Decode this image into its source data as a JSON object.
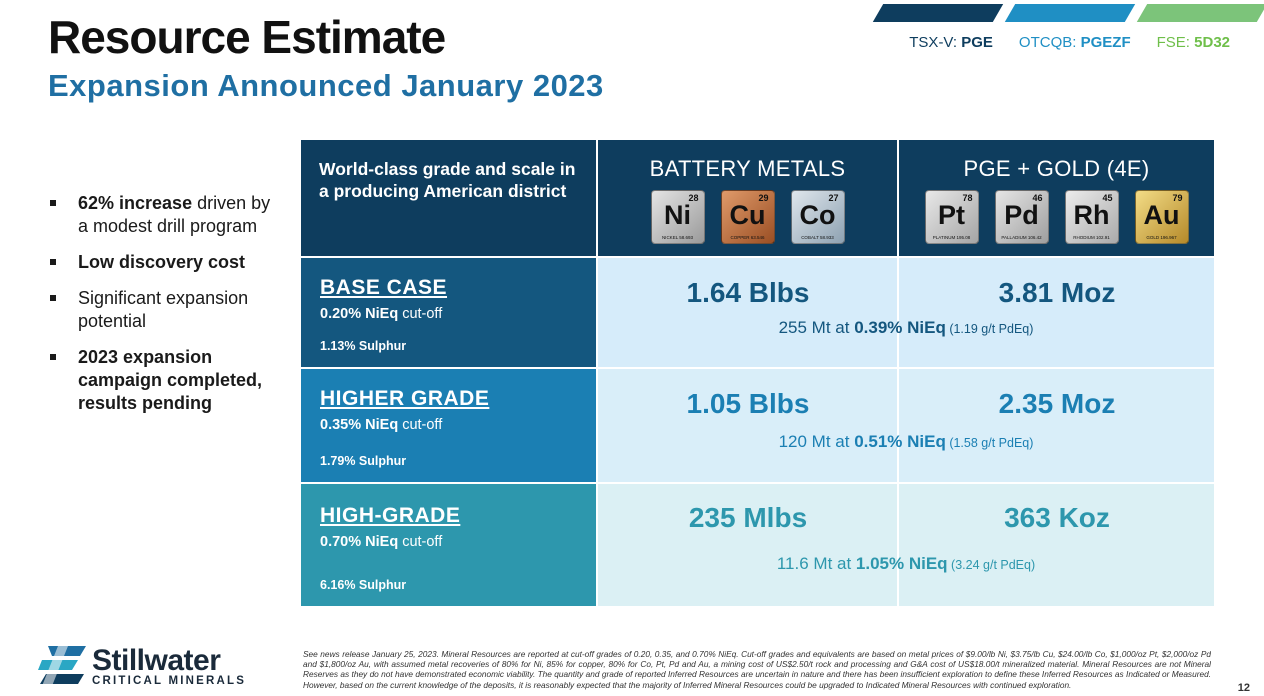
{
  "header": {
    "title": "Resource Estimate",
    "subtitle": "Expansion Announced January 2023"
  },
  "tickers": [
    {
      "prefix": "TSX-V:",
      "symbol": "PGE",
      "color": "#0e3d5e"
    },
    {
      "prefix": "OTCQB:",
      "symbol": "PGEZF",
      "color": "#1f8fc4"
    },
    {
      "prefix": "FSE:",
      "symbol": "5D32",
      "color": "#6fbf4a"
    }
  ],
  "stripe_colors": [
    "#0e3d5e",
    "#1f8fc4",
    "#7cc47a"
  ],
  "bullets": [
    {
      "bold": "62% increase",
      "rest": " driven by a modest drill program"
    },
    {
      "bold": "Low discovery cost",
      "rest": ""
    },
    {
      "bold": "",
      "rest": "Significant expansion potential"
    },
    {
      "bold": "2023 expansion campaign completed, results pending",
      "rest": ""
    }
  ],
  "table": {
    "header_left": "World-class grade and scale in a producing American district",
    "battery_title": "BATTERY METALS",
    "pge_title": "PGE + GOLD (4E)",
    "battery_metals": [
      {
        "symbol": "Ni",
        "number": "28",
        "name": "NICKEL 58.693",
        "color_top": "#e4e4e4",
        "color_bottom": "#9a9a9a"
      },
      {
        "symbol": "Cu",
        "number": "29",
        "name": "COPPER 63.546",
        "color_top": "#e09a6a",
        "color_bottom": "#9a4f24"
      },
      {
        "symbol": "Co",
        "number": "27",
        "name": "COBALT 58.933",
        "color_top": "#dfe6ec",
        "color_bottom": "#8ea2b2"
      }
    ],
    "pge_metals": [
      {
        "symbol": "Pt",
        "number": "78",
        "name": "PLATINUM 195.08",
        "color_top": "#e8e8e8",
        "color_bottom": "#a5a5a5"
      },
      {
        "symbol": "Pd",
        "number": "46",
        "name": "PALLADIUM 106.42",
        "color_top": "#e5e5e5",
        "color_bottom": "#9f9f9f"
      },
      {
        "symbol": "Rh",
        "number": "45",
        "name": "RHODIUM 102.91",
        "color_top": "#ececec",
        "color_bottom": "#aaaaaa"
      },
      {
        "symbol": "Au",
        "number": "79",
        "name": "GOLD 196.967",
        "color_top": "#f3dc86",
        "color_bottom": "#b58a2a"
      }
    ],
    "rows": [
      {
        "case": "BASE CASE",
        "cutoff_bold": "0.20% NiEq",
        "cutoff_rest": " cut-off",
        "sulphur": "1.13% Sulphur",
        "battery": "1.64 Blbs",
        "pge": "3.81 Moz",
        "line_pre": "255 Mt at ",
        "line_bold": "0.39% NiEq",
        "line_small": " (1.19 g/t PdEq)",
        "label_bg": "#14577f",
        "data_bg": "#d6ecfa",
        "text_color": "#14577f",
        "line_color": "#14577f"
      },
      {
        "case": "HIGHER GRADE",
        "cutoff_bold": "0.35% NiEq",
        "cutoff_rest": " cut-off",
        "sulphur": "1.79% Sulphur",
        "battery": "1.05 Blbs",
        "pge": "2.35 Moz",
        "line_pre": "120 Mt at ",
        "line_bold": "0.51% NiEq",
        "line_small": " (1.58 g/t PdEq)",
        "label_bg": "#1b7fb3",
        "data_bg": "#d9eef9",
        "text_color": "#1b7fb3",
        "line_color": "#1b7fb3"
      },
      {
        "case": "HIGH-GRADE",
        "cutoff_bold": "0.70% NiEq",
        "cutoff_rest": " cut-off",
        "sulphur": "6.16% Sulphur",
        "battery": "235 Mlbs",
        "pge": "363 Koz",
        "line_pre": "11.6 Mt at ",
        "line_bold": "1.05% NiEq",
        "line_small": " (3.24 g/t PdEq)",
        "label_bg": "#2d97ad",
        "data_bg": "#dbf0f4",
        "text_color": "#2d97ad",
        "line_color": "#2d97ad"
      }
    ]
  },
  "logo": {
    "name": "Stillwater",
    "sub": "CRITICAL MINERALS",
    "icon": "stillwater-logo-mark"
  },
  "footnote": "See news release January 25, 2023. Mineral Resources are reported at cut-off grades of 0.20, 0.35, and 0.70% NiEq. Cut-off grades and equivalents are based on metal prices of $9.00/lb Ni, $3.75/lb Cu, $24.00/lb Co, $1,000/oz Pt, $2,000/oz Pd and $1,800/oz Au, with assumed metal recoveries of 80% for Ni, 85% for copper, 80% for Co, Pt, Pd and Au, a mining cost of US$2.50/t rock and processing and G&A cost of US$18.00/t mineralized material. Mineral Resources are not Mineral Reserves as they do not have demonstrated economic viability. The quantity and grade of reported Inferred Resources are uncertain in nature and there has been insufficient exploration to define these Inferred Resources as Indicated or Measured. However, based on the current knowledge of the deposits, it is reasonably expected that the majority of Inferred Mineral Resources could be upgraded to Indicated Mineral Resources with continued exploration.",
  "page_number": "12"
}
